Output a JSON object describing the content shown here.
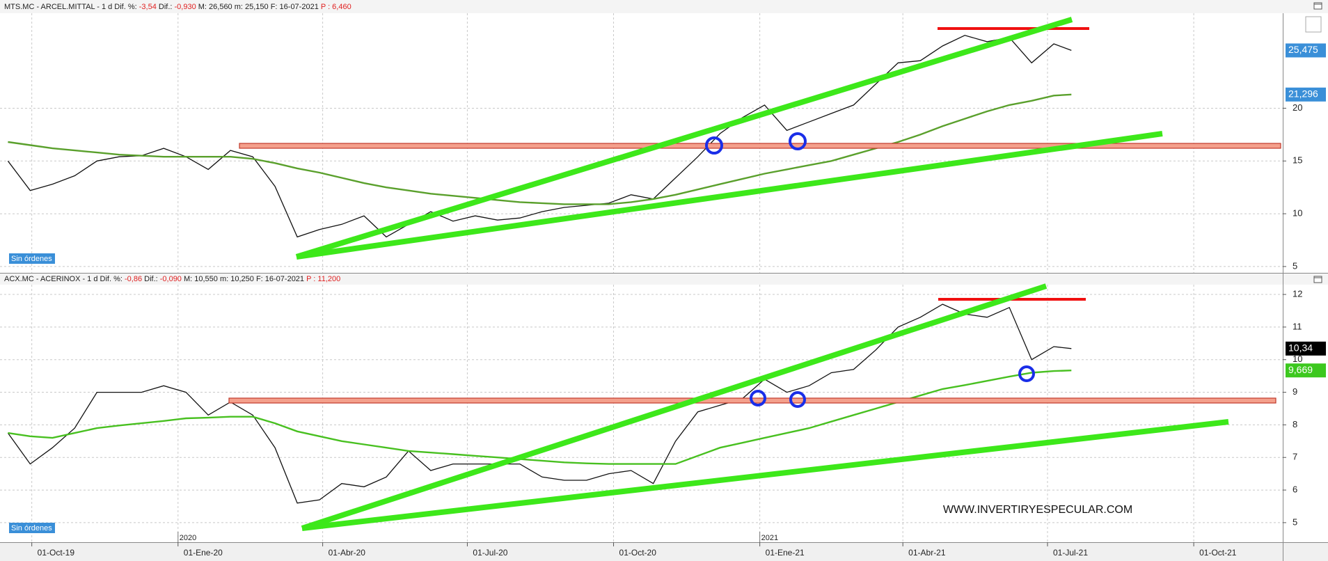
{
  "chart_data": [
    {
      "type": "line",
      "header": [
        {
          "text": "MTS.MC - ARCEL.MITTAL -   1 d  Dif. %: "
        },
        {
          "text": "-3,54",
          "color": "#e02020"
        },
        {
          "text": "  Dif.: "
        },
        {
          "text": "-0,930",
          "color": "#e02020"
        },
        {
          "text": "  M: 26,560   m: 25,150   F: 16-07-2021   "
        },
        {
          "text": "P : 6,460",
          "color": "#e02020"
        }
      ],
      "x": [
        "2019-09-16",
        "2019-09-30",
        "2019-10-14",
        "2019-10-28",
        "2019-11-11",
        "2019-11-25",
        "2019-12-09",
        "2019-12-23",
        "2020-01-06",
        "2020-01-20",
        "2020-02-03",
        "2020-02-17",
        "2020-03-02",
        "2020-03-16",
        "2020-03-30",
        "2020-04-13",
        "2020-04-27",
        "2020-05-11",
        "2020-05-25",
        "2020-06-08",
        "2020-06-22",
        "2020-07-06",
        "2020-07-20",
        "2020-08-03",
        "2020-08-17",
        "2020-08-31",
        "2020-09-14",
        "2020-09-28",
        "2020-10-12",
        "2020-10-26",
        "2020-11-09",
        "2020-11-23",
        "2020-12-07",
        "2020-12-21",
        "2021-01-04",
        "2021-01-18",
        "2021-02-01",
        "2021-02-15",
        "2021-03-01",
        "2021-03-15",
        "2021-03-29",
        "2021-04-12",
        "2021-04-26",
        "2021-05-10",
        "2021-05-24",
        "2021-06-07",
        "2021-06-21",
        "2021-07-05",
        "2021-07-16"
      ],
      "series": [
        {
          "color": "#111111",
          "values": [
            15.0,
            12.2,
            12.8,
            13.6,
            15.0,
            15.4,
            15.5,
            16.2,
            15.4,
            14.2,
            16.0,
            15.4,
            12.6,
            7.8,
            8.5,
            9.0,
            9.8,
            7.8,
            9.0,
            10.2,
            9.3,
            9.8,
            9.4,
            9.6,
            10.2,
            10.6,
            10.8,
            11.0,
            11.8,
            11.4,
            13.4,
            15.4,
            17.6,
            19.1,
            20.3,
            17.9,
            18.7,
            19.5,
            20.3,
            22.3,
            24.3,
            24.5,
            25.9,
            26.9,
            26.3,
            26.7,
            24.3,
            26.1,
            25.475
          ]
        },
        {
          "color": "#5aa02c",
          "values": [
            16.8,
            16.5,
            16.2,
            16.0,
            15.8,
            15.6,
            15.5,
            15.4,
            15.4,
            15.4,
            15.4,
            15.2,
            14.8,
            14.3,
            13.9,
            13.4,
            12.9,
            12.5,
            12.2,
            11.9,
            11.7,
            11.5,
            11.3,
            11.1,
            11.0,
            10.9,
            10.9,
            10.9,
            11.1,
            11.4,
            11.8,
            12.3,
            12.8,
            13.3,
            13.8,
            14.2,
            14.6,
            15.0,
            15.6,
            16.2,
            16.8,
            17.5,
            18.3,
            19.0,
            19.7,
            20.3,
            20.7,
            21.2,
            21.296
          ]
        }
      ],
      "xlim": [
        "2019-09-11",
        "2021-11-26"
      ],
      "ylim": [
        4.4,
        29
      ],
      "yticks": [
        5,
        10,
        15,
        20
      ],
      "grid": true,
      "tags": [
        {
          "value": 25.475,
          "label": "25,475",
          "color": "#3a8fd8"
        },
        {
          "value": 21.296,
          "label": "21,296",
          "color": "#3a8fd8"
        }
      ],
      "button": "Sin órdenes"
    },
    {
      "type": "line",
      "header": [
        {
          "text": "ACX.MC - ACERINOX -  1 d  Dif. %: "
        },
        {
          "text": "-0,86",
          "color": "#e02020"
        },
        {
          "text": "  Dif.: "
        },
        {
          "text": "-0,090",
          "color": "#e02020"
        },
        {
          "text": "  M: 10,550   m: 10,250   F: 16-07-2021   "
        },
        {
          "text": "P : 11,200",
          "color": "#e02020"
        }
      ],
      "x": [
        "2019-09-16",
        "2019-09-30",
        "2019-10-14",
        "2019-10-28",
        "2019-11-11",
        "2019-11-25",
        "2019-12-09",
        "2019-12-23",
        "2020-01-06",
        "2020-01-20",
        "2020-02-03",
        "2020-02-17",
        "2020-03-02",
        "2020-03-16",
        "2020-03-30",
        "2020-04-13",
        "2020-04-27",
        "2020-05-11",
        "2020-05-25",
        "2020-06-08",
        "2020-06-22",
        "2020-07-06",
        "2020-07-20",
        "2020-08-03",
        "2020-08-17",
        "2020-08-31",
        "2020-09-14",
        "2020-09-28",
        "2020-10-12",
        "2020-10-26",
        "2020-11-09",
        "2020-11-23",
        "2020-12-07",
        "2020-12-21",
        "2021-01-04",
        "2021-01-18",
        "2021-02-01",
        "2021-02-15",
        "2021-03-01",
        "2021-03-15",
        "2021-03-29",
        "2021-04-12",
        "2021-04-26",
        "2021-05-10",
        "2021-05-24",
        "2021-06-07",
        "2021-06-21",
        "2021-07-05",
        "2021-07-16"
      ],
      "series": [
        {
          "color": "#111111",
          "values": [
            7.75,
            6.8,
            7.3,
            7.9,
            9.0,
            9.0,
            9.0,
            9.2,
            9.0,
            8.3,
            8.7,
            8.3,
            7.3,
            5.6,
            5.7,
            6.2,
            6.1,
            6.4,
            7.2,
            6.6,
            6.8,
            6.8,
            6.8,
            6.8,
            6.4,
            6.3,
            6.3,
            6.5,
            6.6,
            6.2,
            7.5,
            8.4,
            8.6,
            8.8,
            9.4,
            9.0,
            9.2,
            9.6,
            9.7,
            10.3,
            11.0,
            11.3,
            11.7,
            11.4,
            11.3,
            11.6,
            10.0,
            10.4,
            10.34
          ]
        },
        {
          "color": "#48c020",
          "values": [
            7.75,
            7.65,
            7.6,
            7.75,
            7.9,
            7.98,
            8.05,
            8.12,
            8.2,
            8.22,
            8.25,
            8.25,
            8.05,
            7.8,
            7.65,
            7.5,
            7.4,
            7.3,
            7.2,
            7.15,
            7.1,
            7.05,
            7.0,
            6.95,
            6.9,
            6.85,
            6.82,
            6.8,
            6.8,
            6.8,
            6.8,
            7.05,
            7.3,
            7.45,
            7.6,
            7.75,
            7.9,
            8.1,
            8.3,
            8.5,
            8.7,
            8.9,
            9.1,
            9.22,
            9.35,
            9.48,
            9.6,
            9.65,
            9.669
          ]
        }
      ],
      "xlim": [
        "2019-09-11",
        "2021-11-26"
      ],
      "ylim": [
        4.4,
        12.3
      ],
      "yticks": [
        5,
        6,
        7,
        8,
        9,
        10,
        11,
        12
      ],
      "grid": true,
      "tags": [
        {
          "value": 10.34,
          "label": "10,34",
          "color": "#000000"
        },
        {
          "value": 9.669,
          "label": "9,669",
          "color": "#3cc81e"
        }
      ],
      "button": "Sin órdenes",
      "watermark": "WWW.INVERTIRYESPECULAR.COM",
      "xticks": [
        {
          "value": "2019-10-01",
          "label": "01-Oct-19"
        },
        {
          "value": "2020-01-01",
          "label": "01-Ene-20"
        },
        {
          "value": "2020-04-01",
          "label": "01-Abr-20"
        },
        {
          "value": "2020-07-01",
          "label": "01-Jul-20"
        },
        {
          "value": "2020-10-01",
          "label": "01-Oct-20"
        },
        {
          "value": "2021-01-01",
          "label": "01-Ene-21"
        },
        {
          "value": "2021-04-01",
          "label": "01-Abr-21"
        },
        {
          "value": "2021-07-01",
          "label": "01-Jul-21"
        },
        {
          "value": "2021-10-01",
          "label": "01-Oct-21"
        }
      ],
      "year_markers": [
        {
          "value": "2020-01-01",
          "label": "2020"
        },
        {
          "value": "2021-01-01",
          "label": "2021"
        }
      ]
    }
  ]
}
